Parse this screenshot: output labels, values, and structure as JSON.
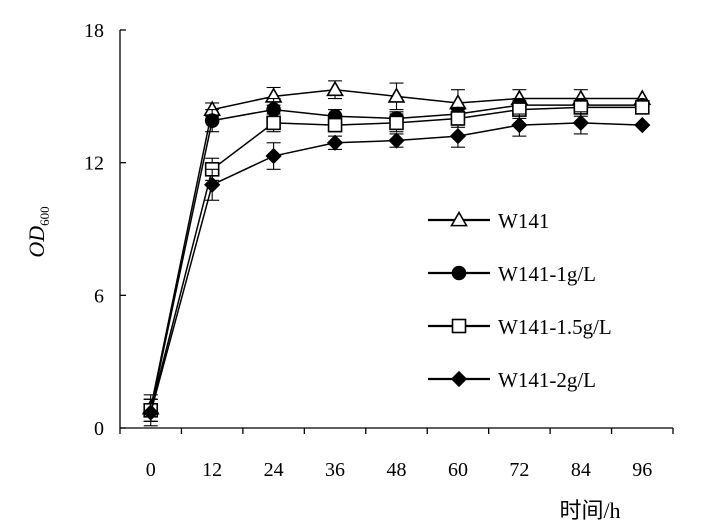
{
  "chart_data": {
    "type": "line",
    "xlabel": "时间/h",
    "ylabel_main": "OD",
    "ylabel_sub": "600",
    "x": [
      0,
      12,
      24,
      36,
      48,
      60,
      72,
      84,
      96
    ],
    "xticks": [
      "0",
      "12",
      "24",
      "36",
      "48",
      "60",
      "72",
      "84",
      "96"
    ],
    "yticks": [
      "0",
      "6",
      "12",
      "18"
    ],
    "ylim": [
      0,
      18
    ],
    "xlim": [
      -6,
      102
    ],
    "grid": false,
    "legend_position": "right-middle",
    "series": [
      {
        "name": "W141",
        "marker": "open-triangle",
        "values": [
          0.9,
          14.4,
          15.0,
          15.3,
          15.0,
          14.7,
          14.9,
          14.9,
          14.9
        ],
        "errors": [
          0.6,
          0.3,
          0.4,
          0.4,
          0.6,
          0.6,
          0.4,
          0.4,
          0.0
        ]
      },
      {
        "name": "W141-1g/L",
        "marker": "filled-circle",
        "values": [
          0.8,
          13.9,
          14.4,
          14.1,
          14.0,
          14.2,
          14.6,
          14.6,
          14.6
        ],
        "errors": [
          0.5,
          0.5,
          0.5,
          0.3,
          0.3,
          0.3,
          0.3,
          0.3,
          0.0
        ]
      },
      {
        "name": "W141-1.5g/L",
        "marker": "open-square",
        "values": [
          0.8,
          11.7,
          13.8,
          13.7,
          13.8,
          14.0,
          14.4,
          14.5,
          14.5
        ],
        "errors": [
          0.5,
          0.5,
          0.4,
          0.3,
          0.4,
          0.4,
          0.4,
          0.4,
          0.0
        ]
      },
      {
        "name": "W141-2g/L",
        "marker": "filled-diamond",
        "values": [
          0.7,
          11.0,
          12.3,
          12.9,
          13.0,
          13.2,
          13.7,
          13.8,
          13.7
        ],
        "errors": [
          0.6,
          0.7,
          0.6,
          0.3,
          0.3,
          0.5,
          0.5,
          0.5,
          0.0
        ]
      }
    ]
  }
}
